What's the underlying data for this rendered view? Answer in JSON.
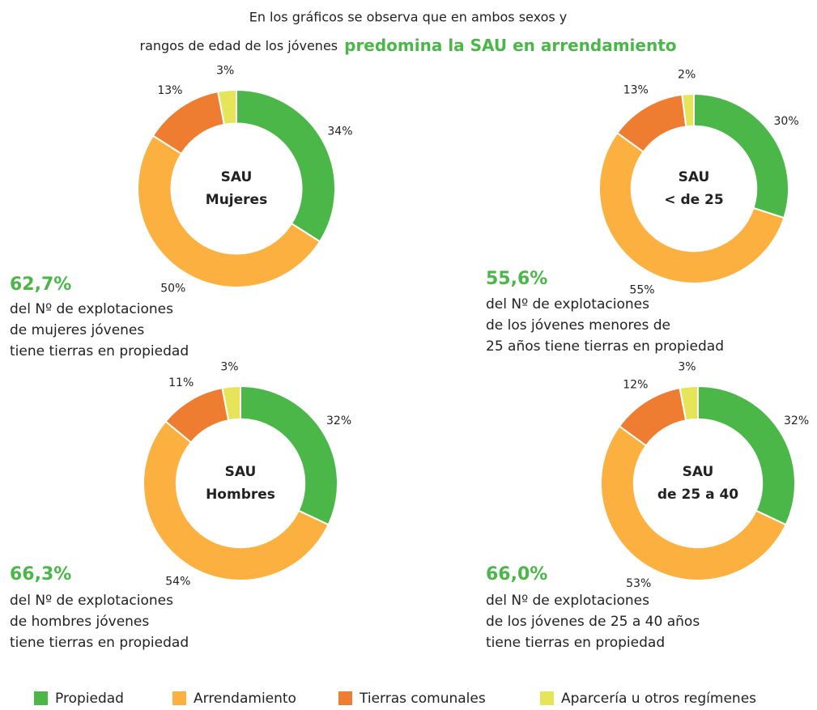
{
  "header": {
    "line1": "En los gráficos se observa que en ambos sexos y",
    "line2": "rangos de edad de los jóvenes",
    "highlight": "predomina la SAU en arrendamiento"
  },
  "legend": [
    {
      "name": "Propiedad",
      "color": "#4bb749"
    },
    {
      "name": "Arrendamiento",
      "color": "#fbb03f"
    },
    {
      "name": "Tierras comunales",
      "color": "#ee7d31"
    },
    {
      "name": "Aparcería u otros regímenes",
      "color": "#e6e55a"
    }
  ],
  "chart_data": [
    {
      "type": "pie",
      "donut": true,
      "title": [
        "SAU",
        "Mujeres"
      ],
      "values": [
        34,
        50,
        13,
        3
      ],
      "value_labels": [
        "34%",
        "50%",
        "13%",
        "3%"
      ],
      "stat": "62,7%",
      "description": [
        "del Nº de explotaciones",
        "de mujeres jóvenes",
        "tiene tierras en propiedad"
      ]
    },
    {
      "type": "pie",
      "donut": true,
      "title": [
        "SAU",
        "< de 25"
      ],
      "values": [
        30,
        55,
        13,
        2
      ],
      "value_labels": [
        "30%",
        "55%",
        "13%",
        "2%"
      ],
      "stat": "55,6%",
      "description": [
        "del Nº de explotaciones",
        "de los jóvenes menores de",
        "25 años  tiene tierras en propiedad"
      ]
    },
    {
      "type": "pie",
      "donut": true,
      "title": [
        "SAU",
        "Hombres"
      ],
      "values": [
        32,
        54,
        11,
        3
      ],
      "value_labels": [
        "32%",
        "54%",
        "11%",
        "3%"
      ],
      "stat": "66,3%",
      "description": [
        "del Nº de explotaciones",
        "de hombres jóvenes",
        "tiene tierras en propiedad"
      ]
    },
    {
      "type": "pie",
      "donut": true,
      "title": [
        "SAU",
        "de 25 a 40"
      ],
      "values": [
        32,
        53,
        12,
        3
      ],
      "value_labels": [
        "32%",
        "53%",
        "12%",
        "3%"
      ],
      "stat": "66,0%",
      "description": [
        "del Nº de explotaciones",
        "de los jóvenes de 25 a 40 años",
        "tiene tierras en propiedad"
      ]
    }
  ]
}
